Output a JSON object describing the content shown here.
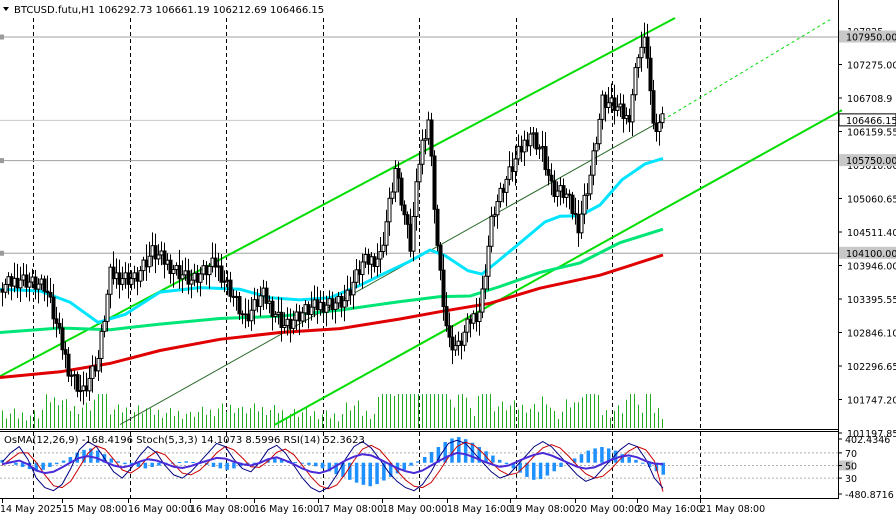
{
  "window": {
    "symbol_line": "BTCUSD.futu,H1  106292.73 106661.19 106212.69 106466.15",
    "indicator_line": "OsMA(12,26,9) -168.4196 Stoch(5,3,3) 14.1073 8.5996 RSI(14) 52.3623"
  },
  "price_axis": {
    "ticks": [
      "107825",
      "107275.00",
      "106708.9",
      "106159.55",
      "105610.00",
      "105060.65",
      "104511.40",
      "103946.00",
      "103395.55",
      "102846.10",
      "102296.65",
      "101747.20",
      "101197.85"
    ],
    "markers": [
      {
        "label": "107950.00",
        "kind": "level"
      },
      {
        "label": "106466.15",
        "kind": "current"
      },
      {
        "label": "105750.00",
        "kind": "level"
      },
      {
        "label": "104100.00",
        "kind": "level"
      }
    ]
  },
  "indicator_axis": {
    "ticks": [
      "402.4346",
      "70",
      "50",
      "30",
      "-480.8716"
    ]
  },
  "time_axis": {
    "labels": [
      "14 May 2025",
      "15 May 08:00",
      "16 May 00:00",
      "16 May 08:00",
      "16 May 16:00",
      "17 May 08:00",
      "18 May 00:00",
      "18 May 16:00",
      "19 May 08:00",
      "20 May 00:00",
      "20 May 16:00",
      "21 May 08:00"
    ]
  },
  "colors": {
    "candles": "#000000",
    "ma_fast": "#00e5ff",
    "ma_mid": "#00e676",
    "ma_slow": "#e00000",
    "channel": "#00dd00",
    "volume": "#22aa22",
    "osma": "#1e90ff",
    "stoch_main": "#000080",
    "stoch_signal": "#cc0000",
    "rsi": "#4b2bd8",
    "level_marker": "#c8c8c8",
    "current_marker": "#ffffff"
  },
  "chart_data": {
    "type": "candlestick",
    "symbol": "BTCUSD.futu",
    "timeframe": "H1",
    "last_bar": {
      "open": 106292.73,
      "high": 106661.19,
      "low": 106212.69,
      "close": 106466.15
    },
    "ylim": [
      100980,
      108280
    ],
    "price_levels": [
      107950.0,
      105750.0,
      104100.0
    ],
    "path_points": [
      {
        "x": 0,
        "y": 103450
      },
      {
        "x": 20,
        "y": 103650
      },
      {
        "x": 45,
        "y": 103500
      },
      {
        "x": 68,
        "y": 102050
      },
      {
        "x": 82,
        "y": 101600
      },
      {
        "x": 98,
        "y": 102200
      },
      {
        "x": 110,
        "y": 103700
      },
      {
        "x": 135,
        "y": 103650
      },
      {
        "x": 152,
        "y": 104100
      },
      {
        "x": 168,
        "y": 103900
      },
      {
        "x": 192,
        "y": 103600
      },
      {
        "x": 215,
        "y": 103900
      },
      {
        "x": 230,
        "y": 103450
      },
      {
        "x": 245,
        "y": 102900
      },
      {
        "x": 262,
        "y": 103350
      },
      {
        "x": 285,
        "y": 102800
      },
      {
        "x": 305,
        "y": 103050
      },
      {
        "x": 325,
        "y": 103200
      },
      {
        "x": 345,
        "y": 103250
      },
      {
        "x": 362,
        "y": 103900
      },
      {
        "x": 380,
        "y": 104050
      },
      {
        "x": 395,
        "y": 105600
      },
      {
        "x": 410,
        "y": 104200
      },
      {
        "x": 420,
        "y": 105900
      },
      {
        "x": 428,
        "y": 106500
      },
      {
        "x": 438,
        "y": 104000
      },
      {
        "x": 448,
        "y": 102500
      },
      {
        "x": 458,
        "y": 102400
      },
      {
        "x": 470,
        "y": 102900
      },
      {
        "x": 480,
        "y": 103100
      },
      {
        "x": 492,
        "y": 104800
      },
      {
        "x": 505,
        "y": 105350
      },
      {
        "x": 518,
        "y": 105850
      },
      {
        "x": 530,
        "y": 106250
      },
      {
        "x": 542,
        "y": 105900
      },
      {
        "x": 552,
        "y": 105200
      },
      {
        "x": 565,
        "y": 105150
      },
      {
        "x": 578,
        "y": 104600
      },
      {
        "x": 590,
        "y": 105500
      },
      {
        "x": 602,
        "y": 106800
      },
      {
        "x": 615,
        "y": 106700
      },
      {
        "x": 628,
        "y": 106450
      },
      {
        "x": 638,
        "y": 107700
      },
      {
        "x": 646,
        "y": 107900
      },
      {
        "x": 653,
        "y": 106300
      },
      {
        "x": 663,
        "y": 106466
      }
    ],
    "ma_fast": [
      {
        "x": 0,
        "y": 103450
      },
      {
        "x": 40,
        "y": 103420
      },
      {
        "x": 70,
        "y": 103220
      },
      {
        "x": 98,
        "y": 102860
      },
      {
        "x": 125,
        "y": 103000
      },
      {
        "x": 160,
        "y": 103400
      },
      {
        "x": 200,
        "y": 103480
      },
      {
        "x": 240,
        "y": 103450
      },
      {
        "x": 270,
        "y": 103300
      },
      {
        "x": 300,
        "y": 103260
      },
      {
        "x": 330,
        "y": 103300
      },
      {
        "x": 360,
        "y": 103520
      },
      {
        "x": 390,
        "y": 103780
      },
      {
        "x": 410,
        "y": 103950
      },
      {
        "x": 430,
        "y": 104150
      },
      {
        "x": 445,
        "y": 104050
      },
      {
        "x": 468,
        "y": 103780
      },
      {
        "x": 482,
        "y": 103720
      },
      {
        "x": 500,
        "y": 103980
      },
      {
        "x": 525,
        "y": 104350
      },
      {
        "x": 545,
        "y": 104650
      },
      {
        "x": 560,
        "y": 104750
      },
      {
        "x": 580,
        "y": 104760
      },
      {
        "x": 600,
        "y": 104950
      },
      {
        "x": 622,
        "y": 105400
      },
      {
        "x": 645,
        "y": 105680
      },
      {
        "x": 663,
        "y": 105780
      }
    ],
    "ma_mid": [
      {
        "x": 0,
        "y": 102680
      },
      {
        "x": 60,
        "y": 102760
      },
      {
        "x": 110,
        "y": 102730
      },
      {
        "x": 160,
        "y": 102830
      },
      {
        "x": 220,
        "y": 102930
      },
      {
        "x": 280,
        "y": 102970
      },
      {
        "x": 340,
        "y": 103080
      },
      {
        "x": 400,
        "y": 103230
      },
      {
        "x": 440,
        "y": 103320
      },
      {
        "x": 470,
        "y": 103330
      },
      {
        "x": 500,
        "y": 103500
      },
      {
        "x": 540,
        "y": 103750
      },
      {
        "x": 580,
        "y": 103920
      },
      {
        "x": 620,
        "y": 104280
      },
      {
        "x": 663,
        "y": 104520
      }
    ],
    "ma_slow": [
      {
        "x": 0,
        "y": 101880
      },
      {
        "x": 60,
        "y": 101980
      },
      {
        "x": 110,
        "y": 102130
      },
      {
        "x": 160,
        "y": 102360
      },
      {
        "x": 220,
        "y": 102560
      },
      {
        "x": 280,
        "y": 102680
      },
      {
        "x": 340,
        "y": 102750
      },
      {
        "x": 400,
        "y": 102920
      },
      {
        "x": 440,
        "y": 103050
      },
      {
        "x": 490,
        "y": 103200
      },
      {
        "x": 540,
        "y": 103470
      },
      {
        "x": 600,
        "y": 103700
      },
      {
        "x": 663,
        "y": 104060
      }
    ],
    "channel": {
      "upper": [
        {
          "x": 0,
          "y": 101900
        },
        {
          "x": 675,
          "y": 108280
        }
      ],
      "middle": [
        {
          "x": 120,
          "y": 101040
        },
        {
          "x": 663,
          "y": 106466
        }
      ],
      "middle_projection": [
        {
          "x": 663,
          "y": 106466
        },
        {
          "x": 830,
          "y": 108250
        }
      ],
      "lower": [
        {
          "x": 275,
          "y": 101040
        },
        {
          "x": 842,
          "y": 106640
        }
      ]
    },
    "indicator": {
      "ylim": [
        -480.8716,
        402.4346
      ],
      "osma_last": -168.4196,
      "stoch_main_last": 14.1073,
      "stoch_signal_last": 8.5996,
      "rsi_last": 52.3623,
      "osma_bars": [
        40,
        20,
        -30,
        -60,
        -90,
        -120,
        -100,
        -60,
        -20,
        30,
        80,
        140,
        180,
        200,
        170,
        120,
        60,
        20,
        -20,
        -40,
        -60,
        -80,
        -60,
        -40,
        -20,
        -10,
        10,
        20,
        10,
        -10,
        -30,
        -60,
        -80,
        -100,
        -80,
        -50,
        -20,
        0,
        20,
        40,
        60,
        50,
        30,
        10,
        -10,
        -30,
        -50,
        -80,
        -120,
        -160,
        -200,
        -240,
        -280,
        -310,
        -330,
        -300,
        -250,
        -200,
        -150,
        -100,
        -40,
        20,
        80,
        150,
        220,
        290,
        340,
        360,
        330,
        280,
        220,
        160,
        100,
        40,
        -20,
        -80,
        -140,
        -200,
        -240,
        -230,
        -180,
        -120,
        -60,
        0,
        60,
        120,
        170,
        200,
        220,
        200,
        170,
        120,
        80,
        40,
        0,
        -60,
        -120,
        -168
      ],
      "stoch": [
        55,
        70,
        80,
        60,
        30,
        15,
        10,
        20,
        45,
        75,
        88,
        80,
        60,
        40,
        30,
        45,
        65,
        80,
        70,
        50,
        35,
        30,
        40,
        55,
        70,
        85,
        80,
        60,
        45,
        40,
        55,
        75,
        82,
        70,
        50,
        30,
        15,
        8,
        15,
        35,
        60,
        80,
        88,
        78,
        60,
        40,
        25,
        15,
        10,
        20,
        40,
        65,
        85,
        90,
        85,
        70,
        55,
        40,
        30,
        35,
        50,
        65,
        80,
        88,
        80,
        65,
        50,
        35,
        25,
        30,
        45,
        60,
        75,
        85,
        80,
        60,
        30,
        14
      ],
      "stoch_signal": [
        50,
        60,
        70,
        70,
        55,
        35,
        18,
        15,
        25,
        47,
        69,
        81,
        76,
        60,
        43,
        38,
        47,
        63,
        72,
        67,
        52,
        38,
        35,
        42,
        55,
        70,
        80,
        75,
        62,
        48,
        47,
        57,
        71,
        76,
        67,
        50,
        32,
        18,
        13,
        19,
        37,
        58,
        76,
        82,
        75,
        59,
        42,
        27,
        17,
        15,
        23,
        42,
        63,
        80,
        87,
        82,
        70,
        55,
        42,
        35,
        38,
        50,
        65,
        78,
        83,
        78,
        65,
        50,
        37,
        30,
        33,
        45,
        60,
        73,
        80,
        75,
        57,
        8.6
      ],
      "rsi": [
        52,
        55,
        58,
        52,
        42,
        38,
        40,
        47,
        55,
        62,
        65,
        62,
        56,
        50,
        47,
        50,
        56,
        60,
        58,
        53,
        48,
        46,
        49,
        54,
        58,
        62,
        61,
        56,
        52,
        50,
        54,
        60,
        63,
        58,
        52,
        45,
        40,
        38,
        42,
        50,
        58,
        64,
        68,
        66,
        60,
        53,
        46,
        41,
        38,
        42,
        50,
        58,
        65,
        70,
        68,
        63,
        57,
        52,
        48,
        50,
        56,
        62,
        67,
        70,
        66,
        60,
        54,
        48,
        45,
        47,
        53,
        59,
        64,
        66,
        63,
        57,
        53,
        52.4
      ]
    }
  }
}
